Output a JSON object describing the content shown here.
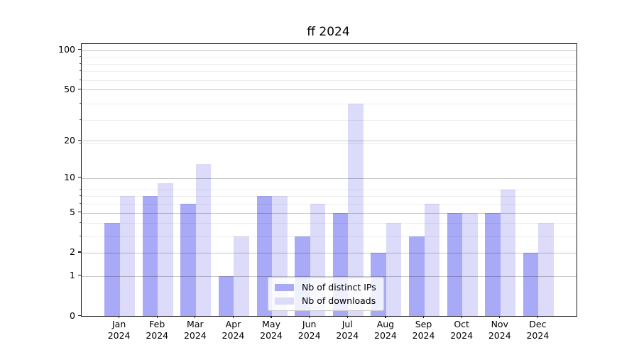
{
  "chart_data": {
    "type": "bar",
    "title": "ff 2024",
    "categories": [
      "Jan",
      "Feb",
      "Mar",
      "Apr",
      "May",
      "Jun",
      "Jul",
      "Aug",
      "Sep",
      "Oct",
      "Nov",
      "Dec"
    ],
    "year_label": "2024",
    "series": [
      {
        "name": "Nb of distinct IPs",
        "color": "#a8a9f7",
        "values": [
          4,
          7,
          6,
          1,
          7,
          3,
          5,
          2,
          3,
          5,
          5,
          2
        ]
      },
      {
        "name": "Nb of downloads",
        "color": "#dcdcfa",
        "values": [
          7,
          9,
          13,
          3,
          7,
          6,
          39,
          4,
          6,
          5,
          8,
          4
        ]
      }
    ],
    "xlabel": "",
    "ylabel": "",
    "yscale": "log1p",
    "yticks": [
      0,
      1,
      2,
      5,
      10,
      20,
      50,
      100
    ],
    "yticks_minor": [
      3,
      4,
      6,
      7,
      8,
      19,
      29,
      39,
      59,
      69,
      79,
      89
    ],
    "ylim": [
      0,
      111.5
    ],
    "grid": true,
    "legend_position": "lower center"
  }
}
